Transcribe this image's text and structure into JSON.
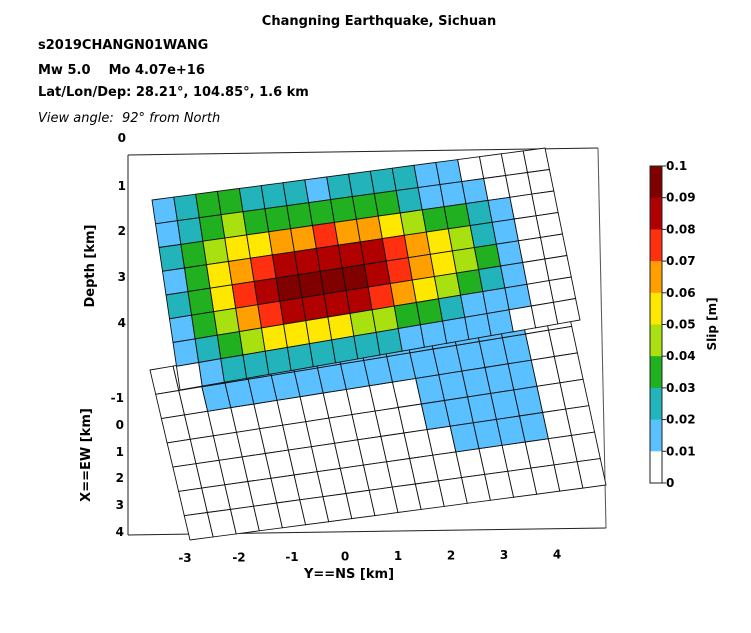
{
  "header": {
    "title": "Changning Earthquake, Sichuan",
    "event_id": "s2019CHANGN01WANG",
    "magnitude": "Mw 5.0    Mo 4.07e+16",
    "location": "Lat/Lon/Dep: 28.21°, 104.85°, 1.6 km",
    "view_angle": "View angle:  92° from North"
  },
  "chart_data": {
    "type": "heatmap",
    "title": "Changning Earthquake, Sichuan",
    "subtitle_lines": [
      "s2019CHANGN01WANG",
      "Mw 5.0    Mo 4.07e+16",
      "Lat/Lon/Dep: 28.21°, 104.85°, 1.6 km",
      "View angle:  92° from North"
    ],
    "view_azimuth_deg": 92,
    "grid": true,
    "depth_axis": {
      "label": "Depth [km]",
      "ticks": [
        "0",
        "1",
        "2",
        "3",
        "4"
      ]
    },
    "ew_axis": {
      "label": "X==EW [km]",
      "ticks": [
        "-1",
        "0",
        "1",
        "2",
        "3",
        "4"
      ]
    },
    "ns_axis": {
      "label": "Y==NS [km]",
      "ticks": [
        "-3",
        "-2",
        "-1",
        "0",
        "1",
        "2",
        "3",
        "4"
      ]
    },
    "colorbar": {
      "label": "Slip [m]",
      "range": [
        0,
        0.1
      ],
      "ticks": [
        "0.1",
        "0.09",
        "0.08",
        "0.07",
        "0.06",
        "0.05",
        "0.04",
        "0.03",
        "0.02",
        "0.01",
        "0"
      ],
      "colormap": [
        "#ffffff",
        "#5bc0ff",
        "#22b4ba",
        "#20b020",
        "#a8e010",
        "#ffe800",
        "#ffa000",
        "#ff3010",
        "#b00000",
        "#800000"
      ]
    },
    "nrows": 8,
    "ncols": 18,
    "slip_m": [
      [
        0.02,
        0.027,
        0.034,
        0.03,
        0.029,
        0.024,
        0.021,
        0.02,
        0.024,
        0.027,
        0.026,
        0.022,
        0.011,
        0.011,
        0.0,
        0.0,
        0.0,
        0.0
      ],
      [
        0.02,
        0.026,
        0.035,
        0.042,
        0.03,
        0.03,
        0.03,
        0.034,
        0.034,
        0.034,
        0.03,
        0.028,
        0.02,
        0.018,
        0.011,
        0.0,
        0.0,
        0.0
      ],
      [
        0.021,
        0.03,
        0.045,
        0.051,
        0.057,
        0.062,
        0.066,
        0.07,
        0.068,
        0.06,
        0.052,
        0.045,
        0.04,
        0.034,
        0.022,
        0.011,
        0.01,
        0.0
      ],
      [
        0.02,
        0.035,
        0.052,
        0.066,
        0.08,
        0.085,
        0.087,
        0.088,
        0.086,
        0.083,
        0.073,
        0.062,
        0.05,
        0.041,
        0.028,
        0.018,
        0.01,
        0.0
      ],
      [
        0.021,
        0.036,
        0.054,
        0.072,
        0.089,
        0.094,
        0.097,
        0.097,
        0.094,
        0.088,
        0.079,
        0.065,
        0.055,
        0.044,
        0.03,
        0.02,
        0.01,
        0.0
      ],
      [
        0.02,
        0.031,
        0.047,
        0.06,
        0.076,
        0.084,
        0.086,
        0.085,
        0.083,
        0.074,
        0.065,
        0.052,
        0.044,
        0.031,
        0.022,
        0.015,
        0.0,
        0.0
      ],
      [
        0.012,
        0.024,
        0.033,
        0.042,
        0.052,
        0.056,
        0.054,
        0.052,
        0.048,
        0.044,
        0.038,
        0.034,
        0.023,
        0.02,
        0.018,
        0.011,
        0.0,
        0.0
      ],
      [
        0.01,
        0.017,
        0.022,
        0.027,
        0.027,
        0.027,
        0.027,
        0.026,
        0.024,
        0.022,
        0.019,
        0.016,
        0.014,
        0.013,
        0.011,
        0.0,
        0.0,
        0.0
      ]
    ]
  }
}
